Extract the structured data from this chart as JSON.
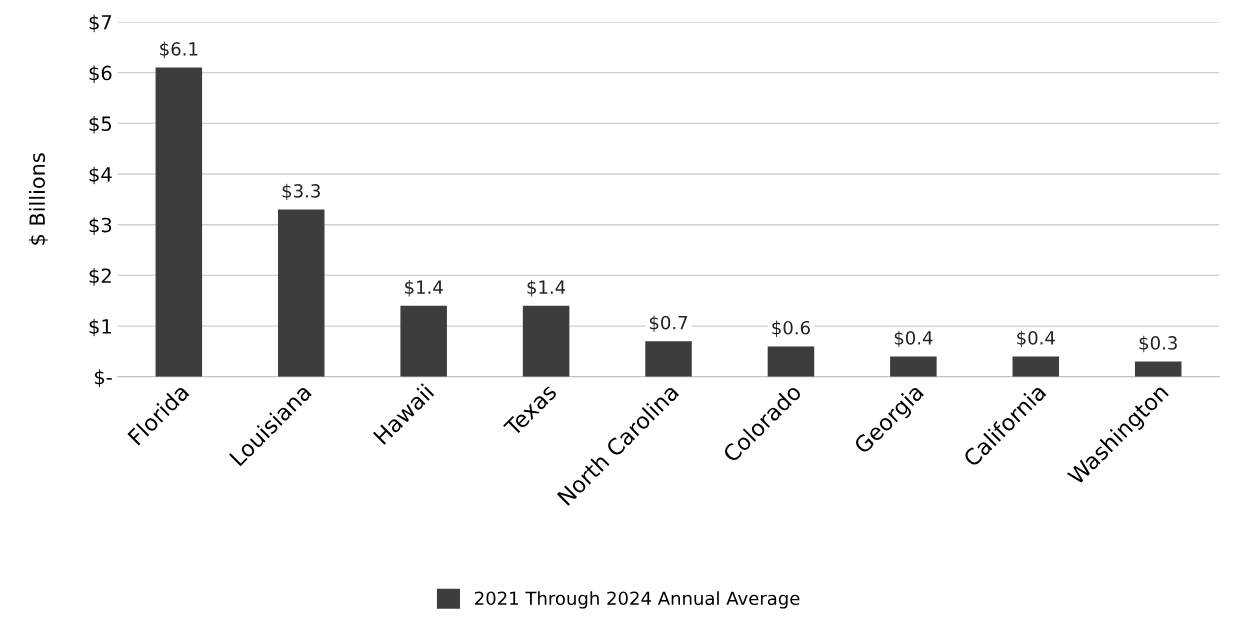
{
  "chart_data": {
    "type": "bar",
    "ylabel": "$ Billions",
    "categories": [
      "Florida",
      "Louisiana",
      "Hawaii",
      "Texas",
      "North Carolina",
      "Colorado",
      "Georgia",
      "California",
      "Washington"
    ],
    "series": [
      {
        "name": "2021 Through 2024 Annual Average",
        "color": "#3d3d3b",
        "values": [
          6.1,
          3.3,
          1.4,
          1.4,
          0.7,
          0.6,
          0.4,
          0.4,
          0.3
        ],
        "value_labels": [
          "$6.1",
          "$3.3",
          "$1.4",
          "$1.4",
          "$0.7",
          "$0.6",
          "$0.4",
          "$0.4",
          "$0.3"
        ]
      }
    ],
    "ylim": [
      0,
      7
    ],
    "yticks": [
      {
        "value": 0,
        "label": "$-"
      },
      {
        "value": 1,
        "label": "$1"
      },
      {
        "value": 2,
        "label": "$2"
      },
      {
        "value": 3,
        "label": "$3"
      },
      {
        "value": 4,
        "label": "$4"
      },
      {
        "value": 5,
        "label": "$5"
      },
      {
        "value": 6,
        "label": "$6"
      },
      {
        "value": 7,
        "label": "$7"
      }
    ],
    "grid": "y",
    "legend": "bottom"
  }
}
